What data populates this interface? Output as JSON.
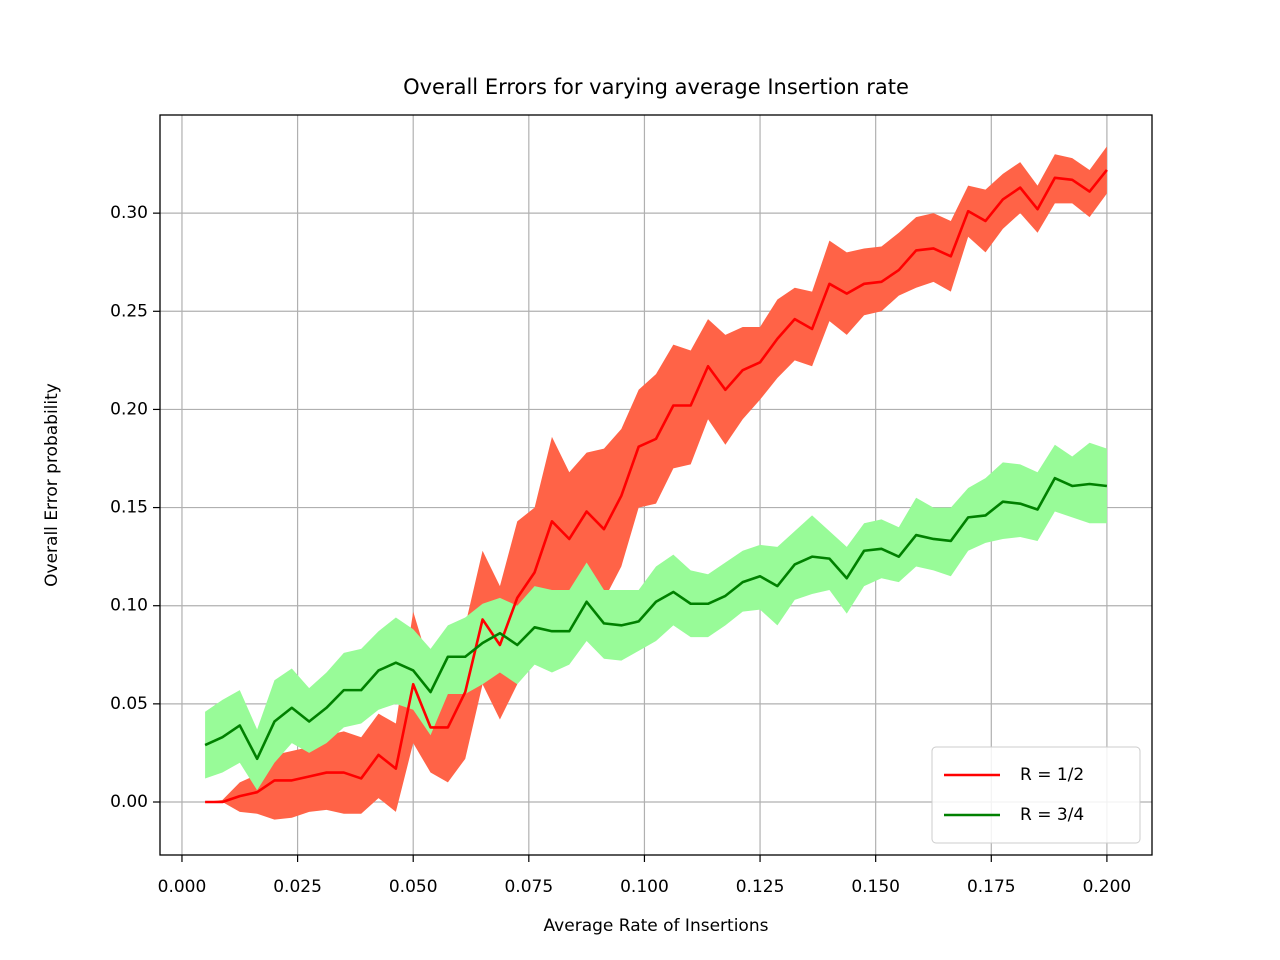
{
  "chart_data": {
    "type": "line",
    "title": "Overall Errors for varying average Insertion rate",
    "xlabel": "Average Rate of Insertions",
    "ylabel": "Overall Error probability",
    "x": [
      0.005,
      0.00875,
      0.0125,
      0.01625,
      0.02,
      0.02375,
      0.0275,
      0.03125,
      0.035,
      0.03875,
      0.0425,
      0.04625,
      0.05,
      0.05375,
      0.0575,
      0.06125,
      0.065,
      0.06875,
      0.0725,
      0.07625,
      0.08,
      0.08375,
      0.0875,
      0.09125,
      0.095,
      0.09875,
      0.1025,
      0.10625,
      0.11,
      0.11375,
      0.1175,
      0.12125,
      0.125,
      0.12875,
      0.1325,
      0.13625,
      0.14,
      0.14375,
      0.1475,
      0.15125,
      0.155,
      0.15875,
      0.1625,
      0.16625,
      0.17,
      0.17375,
      0.1775,
      0.18125,
      0.185,
      0.18875,
      0.1925,
      0.19625,
      0.2
    ],
    "series": [
      {
        "name": "R = 1/2",
        "color": "#ff0000",
        "band_color": "#ff6347",
        "values": [
          0.0,
          0.0,
          0.003,
          0.005,
          0.011,
          0.011,
          0.013,
          0.015,
          0.015,
          0.012,
          0.024,
          0.017,
          0.06,
          0.038,
          0.038,
          0.056,
          0.093,
          0.08,
          0.104,
          0.117,
          0.143,
          0.134,
          0.148,
          0.139,
          0.156,
          0.181,
          0.185,
          0.202,
          0.202,
          0.222,
          0.21,
          0.22,
          0.224,
          0.236,
          0.246,
          0.241,
          0.264,
          0.259,
          0.264,
          0.265,
          0.271,
          0.281,
          0.282,
          0.278,
          0.301,
          0.296,
          0.307,
          0.313,
          0.302,
          0.318,
          0.317,
          0.311,
          0.322
        ],
        "lower": [
          0.0,
          0.0,
          -0.005,
          -0.006,
          -0.009,
          -0.008,
          -0.005,
          -0.004,
          -0.006,
          -0.006,
          0.002,
          -0.005,
          0.03,
          0.015,
          0.01,
          0.022,
          0.06,
          0.042,
          0.06,
          0.08,
          0.1,
          0.1,
          0.11,
          0.103,
          0.12,
          0.15,
          0.152,
          0.17,
          0.172,
          0.195,
          0.182,
          0.195,
          0.205,
          0.216,
          0.225,
          0.222,
          0.245,
          0.238,
          0.248,
          0.25,
          0.258,
          0.262,
          0.265,
          0.26,
          0.288,
          0.28,
          0.292,
          0.3,
          0.29,
          0.305,
          0.305,
          0.298,
          0.31
        ],
        "upper": [
          0.0,
          0.001,
          0.01,
          0.014,
          0.024,
          0.026,
          0.028,
          0.034,
          0.036,
          0.033,
          0.045,
          0.04,
          0.097,
          0.068,
          0.062,
          0.09,
          0.128,
          0.11,
          0.143,
          0.15,
          0.186,
          0.168,
          0.178,
          0.18,
          0.19,
          0.21,
          0.218,
          0.233,
          0.23,
          0.246,
          0.238,
          0.242,
          0.242,
          0.256,
          0.262,
          0.26,
          0.286,
          0.28,
          0.282,
          0.283,
          0.29,
          0.298,
          0.3,
          0.296,
          0.314,
          0.312,
          0.32,
          0.326,
          0.314,
          0.33,
          0.328,
          0.322,
          0.334
        ]
      },
      {
        "name": "R = 3/4",
        "color": "#008000",
        "band_color": "#98fb98",
        "values": [
          0.029,
          0.033,
          0.039,
          0.022,
          0.041,
          0.048,
          0.041,
          0.048,
          0.057,
          0.057,
          0.067,
          0.071,
          0.067,
          0.056,
          0.074,
          0.074,
          0.081,
          0.086,
          0.08,
          0.089,
          0.087,
          0.087,
          0.102,
          0.091,
          0.09,
          0.092,
          0.102,
          0.107,
          0.101,
          0.101,
          0.105,
          0.112,
          0.115,
          0.11,
          0.121,
          0.125,
          0.124,
          0.114,
          0.128,
          0.129,
          0.125,
          0.136,
          0.134,
          0.133,
          0.145,
          0.146,
          0.153,
          0.152,
          0.149,
          0.165,
          0.161,
          0.162,
          0.161
        ],
        "lower": [
          0.012,
          0.015,
          0.02,
          0.006,
          0.02,
          0.03,
          0.025,
          0.03,
          0.038,
          0.04,
          0.047,
          0.05,
          0.047,
          0.034,
          0.055,
          0.055,
          0.06,
          0.066,
          0.06,
          0.07,
          0.066,
          0.07,
          0.082,
          0.073,
          0.072,
          0.077,
          0.082,
          0.09,
          0.084,
          0.084,
          0.09,
          0.097,
          0.098,
          0.09,
          0.103,
          0.106,
          0.108,
          0.096,
          0.11,
          0.114,
          0.112,
          0.12,
          0.118,
          0.115,
          0.128,
          0.132,
          0.134,
          0.135,
          0.133,
          0.148,
          0.145,
          0.142,
          0.142
        ],
        "upper": [
          0.046,
          0.052,
          0.057,
          0.037,
          0.062,
          0.068,
          0.058,
          0.066,
          0.076,
          0.078,
          0.087,
          0.094,
          0.088,
          0.078,
          0.09,
          0.094,
          0.101,
          0.104,
          0.1,
          0.11,
          0.108,
          0.108,
          0.122,
          0.108,
          0.108,
          0.108,
          0.12,
          0.126,
          0.118,
          0.116,
          0.122,
          0.128,
          0.131,
          0.13,
          0.138,
          0.146,
          0.138,
          0.13,
          0.142,
          0.144,
          0.14,
          0.155,
          0.15,
          0.15,
          0.16,
          0.165,
          0.173,
          0.172,
          0.168,
          0.182,
          0.176,
          0.183,
          0.18
        ]
      }
    ],
    "xlim": [
      -0.00475,
      0.20975
    ],
    "ylim": [
      -0.027,
      0.35
    ],
    "xticks": [
      {
        "value": 0,
        "label": "0.000"
      },
      {
        "value": 0.025,
        "label": "0.025"
      },
      {
        "value": 0.05,
        "label": "0.050"
      },
      {
        "value": 0.075,
        "label": "0.075"
      },
      {
        "value": 0.1,
        "label": "0.100"
      },
      {
        "value": 0.125,
        "label": "0.125"
      },
      {
        "value": 0.15,
        "label": "0.150"
      },
      {
        "value": 0.175,
        "label": "0.175"
      },
      {
        "value": 0.2,
        "label": "0.200"
      }
    ],
    "yticks": [
      {
        "value": 0,
        "label": "0.00"
      },
      {
        "value": 0.05,
        "label": "0.05"
      },
      {
        "value": 0.1,
        "label": "0.10"
      },
      {
        "value": 0.15,
        "label": "0.15"
      },
      {
        "value": 0.2,
        "label": "0.20"
      },
      {
        "value": 0.25,
        "label": "0.25"
      },
      {
        "value": 0.3,
        "label": "0.30"
      }
    ],
    "grid": true,
    "legend": "lower right"
  }
}
